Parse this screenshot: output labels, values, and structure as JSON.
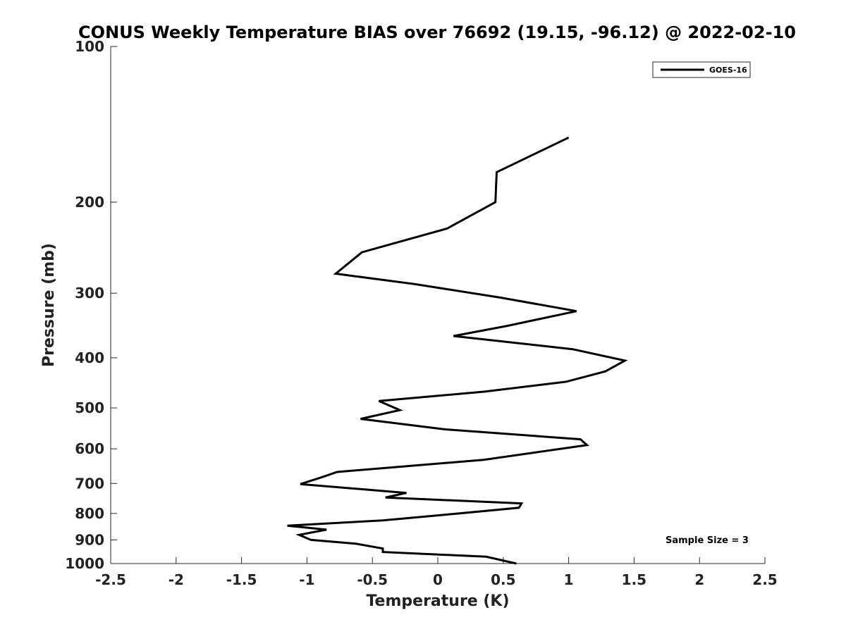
{
  "chart_data": {
    "type": "line",
    "title": "CONUS Weekly Temperature BIAS over 76692 (19.15, -96.12) @ 2022-02-10",
    "xlabel": "Temperature (K)",
    "ylabel": "Pressure (mb)",
    "xlim": [
      -2.5,
      2.5
    ],
    "ylim": [
      100,
      1000
    ],
    "y_scale": "log",
    "y_reversed": true,
    "grid": false,
    "xticks": [
      -2.5,
      -2,
      -1.5,
      -1,
      -0.5,
      0,
      0.5,
      1,
      1.5,
      2,
      2.5
    ],
    "xtick_labels": [
      "-2.5",
      "-2",
      "-1.5",
      "-1",
      "-0.5",
      "0",
      "0.5",
      "1",
      "1.5",
      "2",
      "2.5"
    ],
    "yticks": [
      100,
      200,
      300,
      400,
      500,
      600,
      700,
      800,
      900,
      1000
    ],
    "ytick_labels": [
      "100",
      "200",
      "300",
      "400",
      "500",
      "600",
      "700",
      "800",
      "900",
      "1000"
    ],
    "legend_position": "top-right",
    "series": [
      {
        "name": "GOES-16",
        "color": "#000000",
        "points": [
          {
            "x": 1.0,
            "p": 150
          },
          {
            "x": 0.45,
            "p": 175
          },
          {
            "x": 0.44,
            "p": 200
          },
          {
            "x": 0.07,
            "p": 225
          },
          {
            "x": -0.58,
            "p": 250
          },
          {
            "x": -0.78,
            "p": 275
          },
          {
            "x": -0.18,
            "p": 288
          },
          {
            "x": 0.48,
            "p": 306
          },
          {
            "x": 1.06,
            "p": 325
          },
          {
            "x": 0.53,
            "p": 347
          },
          {
            "x": 0.12,
            "p": 363
          },
          {
            "x": 1.03,
            "p": 385
          },
          {
            "x": 1.43,
            "p": 405
          },
          {
            "x": 1.28,
            "p": 425
          },
          {
            "x": 0.98,
            "p": 445
          },
          {
            "x": 0.36,
            "p": 465
          },
          {
            "x": -0.45,
            "p": 485
          },
          {
            "x": -0.29,
            "p": 505
          },
          {
            "x": -0.59,
            "p": 525
          },
          {
            "x": 0.05,
            "p": 550
          },
          {
            "x": 1.09,
            "p": 575
          },
          {
            "x": 1.14,
            "p": 590
          },
          {
            "x": 0.35,
            "p": 630
          },
          {
            "x": -0.77,
            "p": 665
          },
          {
            "x": -0.88,
            "p": 680
          },
          {
            "x": -1.05,
            "p": 702
          },
          {
            "x": -0.24,
            "p": 730
          },
          {
            "x": -0.4,
            "p": 745
          },
          {
            "x": 0.64,
            "p": 765
          },
          {
            "x": 0.62,
            "p": 780
          },
          {
            "x": 0.11,
            "p": 802
          },
          {
            "x": -0.42,
            "p": 825
          },
          {
            "x": -1.15,
            "p": 845
          },
          {
            "x": -0.85,
            "p": 860
          },
          {
            "x": -1.06,
            "p": 880
          },
          {
            "x": -0.97,
            "p": 900
          },
          {
            "x": -0.63,
            "p": 915
          },
          {
            "x": -0.42,
            "p": 935
          },
          {
            "x": -0.42,
            "p": 950
          },
          {
            "x": 0.37,
            "p": 970
          },
          {
            "x": 0.6,
            "p": 1000
          }
        ]
      }
    ],
    "annotations": [
      {
        "text": "Sample Size = 3",
        "position": "bottom-right"
      }
    ]
  }
}
